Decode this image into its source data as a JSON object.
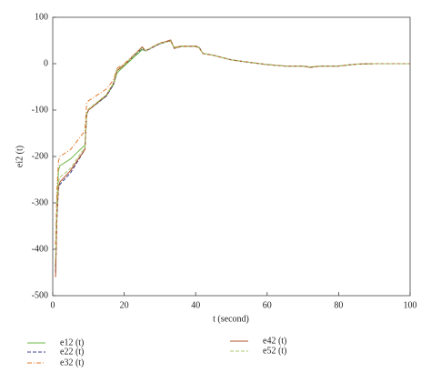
{
  "chart_data": {
    "type": "line",
    "x_label": "t (second)",
    "y_label": "ei2 (t)",
    "x": [
      0.8,
      1.2,
      1.6,
      2,
      5,
      9,
      9.5,
      10,
      15,
      17,
      18,
      20,
      25,
      26,
      30,
      33,
      34,
      36,
      40,
      41,
      42,
      45,
      50,
      55,
      60,
      65,
      70,
      72,
      75,
      80,
      85,
      90,
      95,
      100
    ],
    "series": [
      {
        "name": "e12 (t)",
        "color": "#6fba4a",
        "linestyle": "solid",
        "values": [
          -440,
          -300,
          -230,
          -220,
          -205,
          -175,
          -110,
          -100,
          -70,
          -45,
          -20,
          -5,
          30,
          28,
          43,
          50,
          35,
          38,
          37,
          35,
          22,
          18,
          8,
          3,
          -2,
          -5,
          -5,
          -7,
          -5,
          -5,
          -1,
          0,
          0,
          0
        ]
      },
      {
        "name": "e22 (t)",
        "color": "#3a3f8f",
        "linestyle": "dashed",
        "values": [
          -450,
          -330,
          -270,
          -260,
          -235,
          -185,
          -110,
          -100,
          -70,
          -45,
          -15,
          -3,
          33,
          27,
          43,
          50,
          33,
          37,
          38,
          35,
          22,
          18,
          8,
          3,
          -2,
          -5,
          -5,
          -8,
          -5,
          -5,
          -1,
          0,
          0,
          0
        ]
      },
      {
        "name": "e32 (t)",
        "color": "#e07b2e",
        "linestyle": "dashdot",
        "values": [
          -390,
          -270,
          -210,
          -200,
          -185,
          -145,
          -85,
          -80,
          -55,
          -35,
          -10,
          0,
          35,
          28,
          45,
          48,
          35,
          38,
          38,
          35,
          22,
          18,
          8,
          3,
          -2,
          -5,
          -5,
          -7,
          -5,
          -5,
          -1,
          0,
          0,
          0
        ]
      },
      {
        "name": "e42 (t)",
        "color": "#b5532a",
        "linestyle": "solid",
        "values": [
          -460,
          -320,
          -265,
          -255,
          -230,
          -185,
          -108,
          -100,
          -68,
          -42,
          -15,
          -3,
          36,
          28,
          44,
          51,
          33,
          37,
          37,
          34,
          22,
          18,
          8,
          3,
          -2,
          -5,
          -5,
          -8,
          -5,
          -5,
          -1,
          0,
          0,
          0
        ]
      },
      {
        "name": "e52 (t)",
        "color": "#a8c66c",
        "linestyle": "dashed",
        "values": [
          -420,
          -310,
          -255,
          -245,
          -225,
          -180,
          -105,
          -98,
          -67,
          -42,
          -12,
          -2,
          34,
          28,
          44,
          49,
          34,
          37,
          37,
          34,
          22,
          18,
          8,
          3,
          -2,
          -5,
          -5,
          -7,
          -5,
          -5,
          -1,
          0,
          0,
          0
        ]
      }
    ],
    "xlim": [
      0,
      100
    ],
    "xticks": [
      0,
      20,
      40,
      60,
      80,
      100
    ],
    "ylim": [
      -500,
      100
    ],
    "yticks": [
      -500,
      -400,
      -300,
      -200,
      -100,
      0,
      100
    ]
  }
}
